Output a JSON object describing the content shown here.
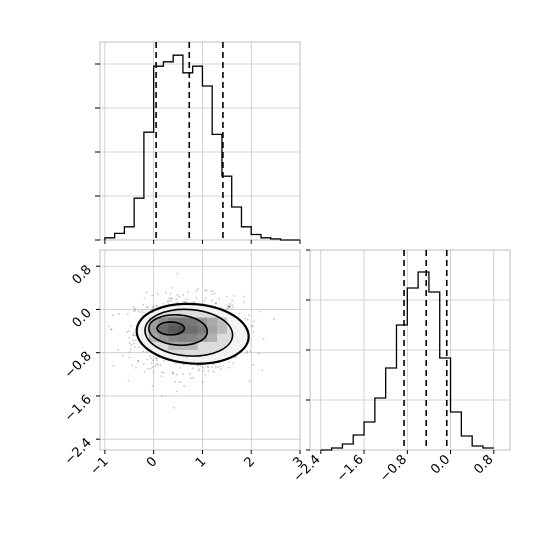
{
  "chart_data": [
    {
      "type": "histogram",
      "panel": "x-marginal",
      "xlim": [
        -1.1,
        3.0
      ],
      "bins_x": [
        -0.9,
        -0.7,
        -0.5,
        -0.3,
        -0.1,
        0.1,
        0.3,
        0.5,
        0.7,
        0.9,
        1.1,
        1.3,
        1.5,
        1.7,
        1.9,
        2.1,
        2.3,
        2.5,
        2.7,
        2.9
      ],
      "bin_width": 0.2,
      "counts": [
        2,
        6,
        12,
        38,
        98,
        158,
        162,
        168,
        152,
        158,
        140,
        96,
        58,
        30,
        12,
        5,
        2,
        1,
        0,
        0
      ],
      "ylim": [
        0,
        180
      ],
      "quantile_lines": [
        0.05,
        0.73,
        1.42
      ],
      "grid": true
    },
    {
      "type": "histogram",
      "panel": "y-marginal",
      "xlim": [
        -2.6,
        1.1
      ],
      "xticks": [
        "−2.4",
        "−1.6",
        "−0.8",
        "0.0",
        "0.8"
      ],
      "bins_x": [
        -2.3,
        -2.1,
        -1.9,
        -1.7,
        -1.5,
        -1.3,
        -1.1,
        -0.9,
        -0.7,
        -0.5,
        -0.3,
        -0.1,
        0.1,
        0.3,
        0.5,
        0.7
      ],
      "bin_width": 0.2,
      "counts": [
        0,
        2,
        6,
        15,
        28,
        52,
        82,
        125,
        162,
        178,
        158,
        92,
        38,
        14,
        4,
        2
      ],
      "ylim": [
        0,
        200
      ],
      "quantile_lines": [
        -0.86,
        -0.45,
        -0.07
      ],
      "grid": true
    },
    {
      "type": "scatter",
      "panel": "joint",
      "xlim": [
        -1.1,
        3.0
      ],
      "ylim": [
        -2.6,
        1.1
      ],
      "xticks": [
        "−1",
        "0",
        "1",
        "2",
        "3"
      ],
      "yticks": [
        "−2.4",
        "−1.6",
        "−0.8",
        "0.0",
        "0.8"
      ],
      "center": [
        0.73,
        -0.45
      ],
      "spread": [
        0.55,
        0.34
      ],
      "n_points": 1100,
      "contours": [
        {
          "level": "outer",
          "rx": 1.15,
          "ry": 0.55,
          "cx": 0.8,
          "cy": -0.45
        },
        {
          "level": "mid",
          "rx": 0.9,
          "ry": 0.43,
          "cx": 0.72,
          "cy": -0.43
        },
        {
          "level": "inner",
          "rx": 0.6,
          "ry": 0.28,
          "cx": 0.5,
          "cy": -0.38
        },
        {
          "level": "core",
          "rx": 0.28,
          "ry": 0.12,
          "cx": 0.35,
          "cy": -0.35
        }
      ],
      "grid": true
    }
  ]
}
